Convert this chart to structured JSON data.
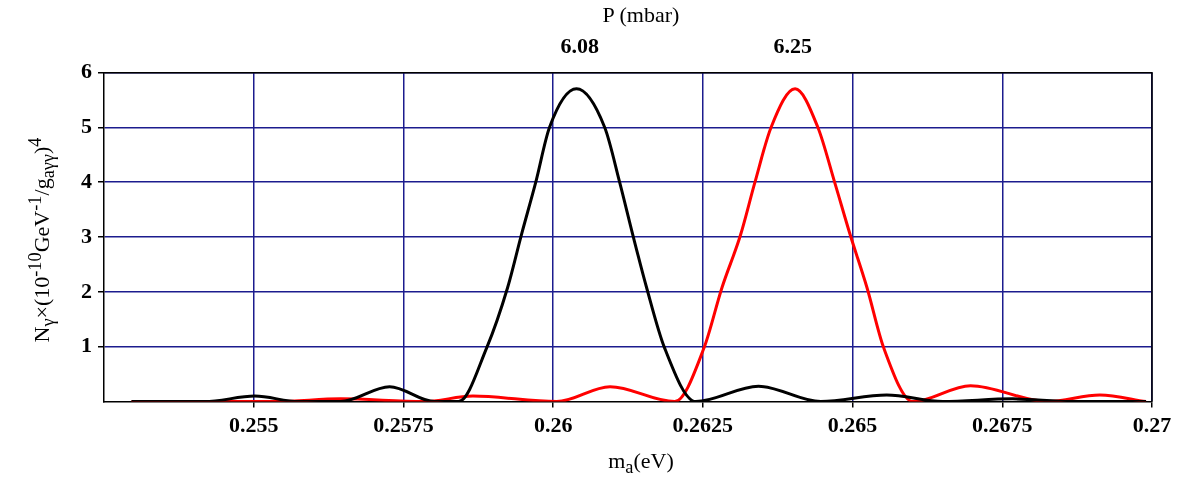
{
  "chart_data": {
    "type": "line",
    "xlabel": "m$_{a}$(eV)",
    "ylabel": "N$_{γ}$×(10$^{-10}$GeV$^{-1}$/g$_{aγγ}$)$^{4}$",
    "x2label": "P (mbar)",
    "xlim": [
      0.2525,
      0.27
    ],
    "xticks": [
      0.255,
      0.2575,
      0.26,
      0.2625,
      0.265,
      0.2675,
      0.27
    ],
    "x2lim": [
      5.7,
      6.537
    ],
    "x2ticks": [
      6.08,
      6.25
    ],
    "ylim": [
      0,
      6
    ],
    "yticks": [
      1,
      2,
      3,
      4,
      5,
      6
    ],
    "grid": true,
    "legend": false,
    "marker": "none",
    "line_style": "solid",
    "series": [
      {
        "color": "#000000",
        "x": [
          0.25296,
          0.25418,
          0.25502,
          0.25575,
          0.25645,
          0.25727,
          0.25802,
          0.25842,
          0.25889,
          0.25924,
          0.25947,
          0.25971,
          0.25994,
          0.26039,
          0.26086,
          0.26111,
          0.26133,
          0.26156,
          0.26186,
          0.26238,
          0.26343,
          0.26447,
          0.26557,
          0.26651,
          0.26767,
          0.26866,
          0.2699
        ],
        "values": [
          0,
          0,
          0.1,
          0,
          0,
          0.27,
          0,
          0,
          0.98,
          2.08,
          3.04,
          4.0,
          5.0,
          5.7,
          5.0,
          4.0,
          3.04,
          2.08,
          0.98,
          0,
          0.28,
          0,
          0.12,
          0,
          0.05,
          0,
          0
        ]
      },
      {
        "color": "#ff0000",
        "x": [
          0.25296,
          0.2554,
          0.25645,
          0.25784,
          0.25866,
          0.26006,
          0.26095,
          0.26203,
          0.26252,
          0.26282,
          0.26313,
          0.26337,
          0.26364,
          0.26404,
          0.26442,
          0.2647,
          0.26496,
          0.26524,
          0.26552,
          0.26601,
          0.26697,
          0.26826,
          0.26913,
          0.2699
        ],
        "values": [
          0,
          0,
          0.05,
          0,
          0.1,
          0,
          0.27,
          0,
          0.98,
          2.08,
          3.04,
          4.0,
          5.0,
          5.7,
          5.0,
          4.0,
          3.04,
          2.08,
          0.98,
          0,
          0.29,
          0,
          0.12,
          0
        ]
      }
    ]
  }
}
